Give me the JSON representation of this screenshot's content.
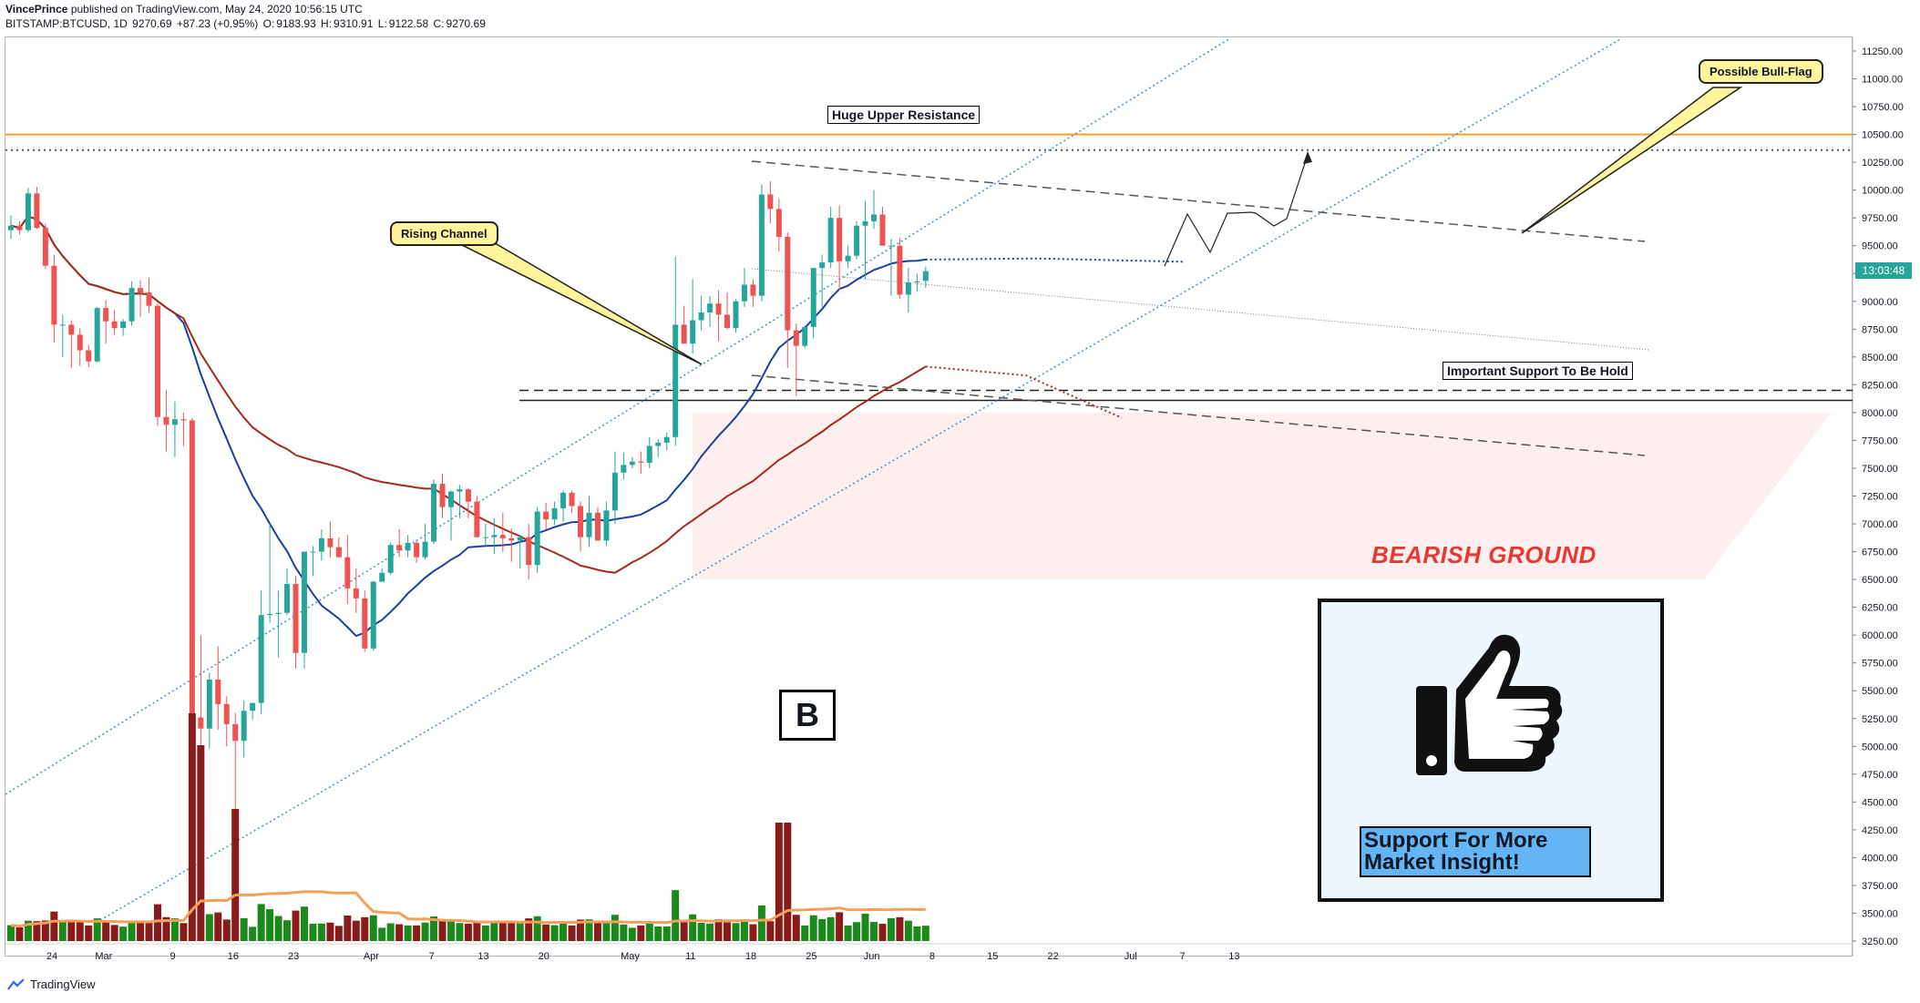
{
  "header": {
    "author": "VincePrince",
    "published": "published on TradingView.com, May 24, 2020 10:56:15 UTC",
    "symbol": "BITSTAMP:BTCUSD, 1D",
    "last": "9270.69",
    "change": "+87.23 (+0.95%)",
    "o_label": "O:",
    "o_value": "9183.93",
    "h_label": "H:",
    "h_value": "9310.91",
    "l_label": "L:",
    "l_value": "9122.58",
    "c_label": "C:",
    "c_value": "9270.69"
  },
  "price_badge": "13:03:48",
  "footer": {
    "brand": "TradingView"
  },
  "annotations": {
    "huge_resistance": "Huge Upper Resistance",
    "important_support": "Important Support To Be Hold",
    "rising_channel": "Rising Channel",
    "bull_flag": "Possible Bull-Flag",
    "bearish_ground": "BEARISH GROUND",
    "b_label": "B",
    "support_line1": "Support For More",
    "support_line2": "Market Insight!"
  },
  "colors": {
    "up": "#26a69a",
    "down": "#ef5350",
    "vol_up": "#1b8a1b",
    "vol_down": "#8b1a1a",
    "ma_fast": "#1a3fa0",
    "ma_slow": "#a52a1a",
    "vol_ma": "#f4a05a",
    "resistance": "#f5a623",
    "channel": "#3f8fd6",
    "bearish_zone": "#fcefed"
  },
  "chart_data": {
    "type": "candlestick",
    "y_ticks": [
      "11250.00",
      "11000.00",
      "10750.00",
      "10500.00",
      "10250.00",
      "10000.00",
      "9750.00",
      "9500.00",
      "9250.00",
      "9000.00",
      "8750.00",
      "8500.00",
      "8250.00",
      "8000.00",
      "7750.00",
      "7500.00",
      "7250.00",
      "7000.00",
      "6750.00",
      "6500.00",
      "6250.00",
      "6000.00",
      "5750.00",
      "5500.00",
      "5250.00",
      "5000.00",
      "4750.00",
      "4500.00",
      "4250.00",
      "4000.00",
      "3750.00",
      "3500.00",
      "3250.00"
    ],
    "ylim": [
      3250,
      11250
    ],
    "x_labels": [
      "24",
      "Mar",
      "9",
      "16",
      "23",
      "Apr",
      "7",
      "13",
      "20",
      "May",
      "11",
      "18",
      "25",
      "Jun",
      "8",
      "15",
      "22",
      "Jul",
      "7",
      "13"
    ],
    "x_label_days": [
      0,
      6,
      14,
      21,
      28,
      37,
      44,
      50,
      57,
      67,
      74,
      81,
      88,
      95,
      102,
      109,
      116,
      125,
      131,
      137
    ],
    "candles": [
      {
        "o": 9640,
        "h": 9770,
        "l": 9560,
        "c": 9680
      },
      {
        "o": 9680,
        "h": 9720,
        "l": 9600,
        "c": 9640
      },
      {
        "o": 9640,
        "h": 10020,
        "l": 9620,
        "c": 9970
      },
      {
        "o": 9970,
        "h": 10030,
        "l": 9650,
        "c": 9660
      },
      {
        "o": 9660,
        "h": 9700,
        "l": 9290,
        "c": 9320
      },
      {
        "o": 9320,
        "h": 9420,
        "l": 8630,
        "c": 8790
      },
      {
        "o": 8790,
        "h": 8880,
        "l": 8500,
        "c": 8790
      },
      {
        "o": 8790,
        "h": 8830,
        "l": 8400,
        "c": 8700
      },
      {
        "o": 8700,
        "h": 8760,
        "l": 8420,
        "c": 8560
      },
      {
        "o": 8560,
        "h": 8610,
        "l": 8410,
        "c": 8460
      },
      {
        "o": 8460,
        "h": 8950,
        "l": 8450,
        "c": 8940
      },
      {
        "o": 8940,
        "h": 9010,
        "l": 8620,
        "c": 8820
      },
      {
        "o": 8820,
        "h": 8920,
        "l": 8700,
        "c": 8760
      },
      {
        "o": 8760,
        "h": 8840,
        "l": 8690,
        "c": 8820
      },
      {
        "o": 8820,
        "h": 9180,
        "l": 8780,
        "c": 9120
      },
      {
        "o": 9120,
        "h": 9190,
        "l": 8860,
        "c": 9080
      },
      {
        "o": 9080,
        "h": 9210,
        "l": 8900,
        "c": 8960
      },
      {
        "o": 8960,
        "h": 8980,
        "l": 7880,
        "c": 7960
      },
      {
        "o": 7960,
        "h": 8200,
        "l": 7650,
        "c": 7890
      },
      {
        "o": 7890,
        "h": 8100,
        "l": 7600,
        "c": 7940
      },
      {
        "o": 7940,
        "h": 8000,
        "l": 7700,
        "c": 7930
      },
      {
        "o": 7930,
        "h": 7950,
        "l": 4850,
        "c": 5260
      },
      {
        "o": 5260,
        "h": 6000,
        "l": 3850,
        "c": 5160
      },
      {
        "o": 5160,
        "h": 5660,
        "l": 4980,
        "c": 5600
      },
      {
        "o": 5600,
        "h": 5900,
        "l": 5150,
        "c": 5380
      },
      {
        "o": 5380,
        "h": 5450,
        "l": 5000,
        "c": 5200
      },
      {
        "o": 5200,
        "h": 5300,
        "l": 4440,
        "c": 5050
      },
      {
        "o": 5050,
        "h": 5410,
        "l": 4900,
        "c": 5320
      },
      {
        "o": 5320,
        "h": 5380,
        "l": 5240,
        "c": 5390
      },
      {
        "o": 5390,
        "h": 6400,
        "l": 5290,
        "c": 6180
      },
      {
        "o": 6180,
        "h": 7000,
        "l": 6110,
        "c": 6190
      },
      {
        "o": 6190,
        "h": 6400,
        "l": 5800,
        "c": 6200
      },
      {
        "o": 6200,
        "h": 6600,
        "l": 6180,
        "c": 6460
      },
      {
        "o": 6460,
        "h": 6530,
        "l": 5700,
        "c": 5840
      },
      {
        "o": 5840,
        "h": 6700,
        "l": 5700,
        "c": 6750
      },
      {
        "o": 6750,
        "h": 6800,
        "l": 6530,
        "c": 6750
      },
      {
        "o": 6750,
        "h": 6950,
        "l": 6670,
        "c": 6870
      },
      {
        "o": 6870,
        "h": 7020,
        "l": 6700,
        "c": 6790
      },
      {
        "o": 6790,
        "h": 6880,
        "l": 6700,
        "c": 6700
      },
      {
        "o": 6700,
        "h": 6900,
        "l": 6280,
        "c": 6420
      },
      {
        "o": 6420,
        "h": 6600,
        "l": 6200,
        "c": 6330
      },
      {
        "o": 6330,
        "h": 6400,
        "l": 5850,
        "c": 5880
      },
      {
        "o": 5880,
        "h": 6490,
        "l": 5860,
        "c": 6480
      },
      {
        "o": 6480,
        "h": 6600,
        "l": 6500,
        "c": 6560
      },
      {
        "o": 6560,
        "h": 6830,
        "l": 6540,
        "c": 6810
      },
      {
        "o": 6810,
        "h": 6950,
        "l": 6700,
        "c": 6760
      },
      {
        "o": 6760,
        "h": 6900,
        "l": 6700,
        "c": 6830
      },
      {
        "o": 6830,
        "h": 6850,
        "l": 6650,
        "c": 6700
      },
      {
        "o": 6700,
        "h": 7000,
        "l": 6680,
        "c": 6840
      },
      {
        "o": 6840,
        "h": 7400,
        "l": 6820,
        "c": 7360
      },
      {
        "o": 7360,
        "h": 7450,
        "l": 7050,
        "c": 7150
      },
      {
        "o": 7150,
        "h": 7300,
        "l": 6850,
        "c": 7290
      },
      {
        "o": 7290,
        "h": 7350,
        "l": 7050,
        "c": 7310
      },
      {
        "o": 7310,
        "h": 7320,
        "l": 7050,
        "c": 7200
      },
      {
        "o": 7200,
        "h": 7250,
        "l": 6900,
        "c": 6880
      },
      {
        "o": 6880,
        "h": 7000,
        "l": 6800,
        "c": 6880
      },
      {
        "o": 6880,
        "h": 7050,
        "l": 6730,
        "c": 6900
      },
      {
        "o": 6900,
        "h": 7100,
        "l": 6750,
        "c": 6870
      },
      {
        "o": 6870,
        "h": 6960,
        "l": 6660,
        "c": 6850
      },
      {
        "o": 6850,
        "h": 6900,
        "l": 6600,
        "c": 6880
      },
      {
        "o": 6880,
        "h": 7000,
        "l": 6500,
        "c": 6630
      },
      {
        "o": 6630,
        "h": 7150,
        "l": 6560,
        "c": 7110
      },
      {
        "o": 7110,
        "h": 7190,
        "l": 6950,
        "c": 7040
      },
      {
        "o": 7040,
        "h": 7200,
        "l": 6990,
        "c": 7140
      },
      {
        "o": 7140,
        "h": 7300,
        "l": 7020,
        "c": 7280
      },
      {
        "o": 7280,
        "h": 7300,
        "l": 7100,
        "c": 7160
      },
      {
        "o": 7160,
        "h": 7200,
        "l": 6750,
        "c": 6880
      },
      {
        "o": 6880,
        "h": 7250,
        "l": 6790,
        "c": 7100
      },
      {
        "o": 7100,
        "h": 7150,
        "l": 6850,
        "c": 6850
      },
      {
        "o": 6850,
        "h": 7200,
        "l": 6800,
        "c": 7120
      },
      {
        "o": 7120,
        "h": 7650,
        "l": 7000,
        "c": 7460
      },
      {
        "o": 7460,
        "h": 7640,
        "l": 7400,
        "c": 7530
      },
      {
        "o": 7530,
        "h": 7600,
        "l": 7500,
        "c": 7560
      },
      {
        "o": 7560,
        "h": 7650,
        "l": 7450,
        "c": 7550
      },
      {
        "o": 7550,
        "h": 7780,
        "l": 7500,
        "c": 7700
      },
      {
        "o": 7700,
        "h": 7760,
        "l": 7600,
        "c": 7730
      },
      {
        "o": 7730,
        "h": 7820,
        "l": 7660,
        "c": 7780
      },
      {
        "o": 7780,
        "h": 9400,
        "l": 7700,
        "c": 8790
      },
      {
        "o": 8790,
        "h": 8960,
        "l": 8620,
        "c": 8620
      },
      {
        "o": 8620,
        "h": 9200,
        "l": 8530,
        "c": 8830
      },
      {
        "o": 8830,
        "h": 9050,
        "l": 8740,
        "c": 8900
      },
      {
        "o": 8900,
        "h": 9050,
        "l": 8770,
        "c": 8980
      },
      {
        "o": 8980,
        "h": 9100,
        "l": 8640,
        "c": 8880
      },
      {
        "o": 8880,
        "h": 9080,
        "l": 8750,
        "c": 8760
      },
      {
        "o": 8760,
        "h": 9020,
        "l": 8720,
        "c": 9000
      },
      {
        "o": 9000,
        "h": 9300,
        "l": 8950,
        "c": 9150
      },
      {
        "o": 9150,
        "h": 9200,
        "l": 8950,
        "c": 9050
      },
      {
        "o": 9050,
        "h": 10050,
        "l": 9000,
        "c": 9960
      },
      {
        "o": 9960,
        "h": 10080,
        "l": 9700,
        "c": 9830
      },
      {
        "o": 9830,
        "h": 9920,
        "l": 9450,
        "c": 9580
      },
      {
        "o": 9580,
        "h": 9620,
        "l": 8400,
        "c": 8740
      },
      {
        "o": 8740,
        "h": 8800,
        "l": 8150,
        "c": 8600
      },
      {
        "o": 8600,
        "h": 8780,
        "l": 8580,
        "c": 8770
      },
      {
        "o": 8770,
        "h": 9300,
        "l": 8670,
        "c": 9300
      },
      {
        "o": 9300,
        "h": 9420,
        "l": 8950,
        "c": 9350
      },
      {
        "o": 9350,
        "h": 9850,
        "l": 9300,
        "c": 9750
      },
      {
        "o": 9750,
        "h": 9860,
        "l": 9100,
        "c": 9360
      },
      {
        "o": 9360,
        "h": 9500,
        "l": 9300,
        "c": 9410
      },
      {
        "o": 9410,
        "h": 9720,
        "l": 9380,
        "c": 9680
      },
      {
        "o": 9680,
        "h": 9900,
        "l": 9200,
        "c": 9720
      },
      {
        "o": 9720,
        "h": 10000,
        "l": 9650,
        "c": 9780
      },
      {
        "o": 9780,
        "h": 9850,
        "l": 9580,
        "c": 9500
      },
      {
        "o": 9500,
        "h": 9560,
        "l": 9050,
        "c": 9500
      },
      {
        "o": 9500,
        "h": 9570,
        "l": 9020,
        "c": 9060
      },
      {
        "o": 9060,
        "h": 9300,
        "l": 8900,
        "c": 9170
      },
      {
        "o": 9170,
        "h": 9250,
        "l": 9090,
        "c": 9180
      },
      {
        "o": 9183.93,
        "h": 9310.91,
        "l": 9122.58,
        "c": 9270.69
      }
    ],
    "volume": [],
    "annotation_levels": {
      "huge_resistance": 10500,
      "upper_dotted": 10360,
      "support_dashed": 8200,
      "support_solid": 8110
    }
  }
}
